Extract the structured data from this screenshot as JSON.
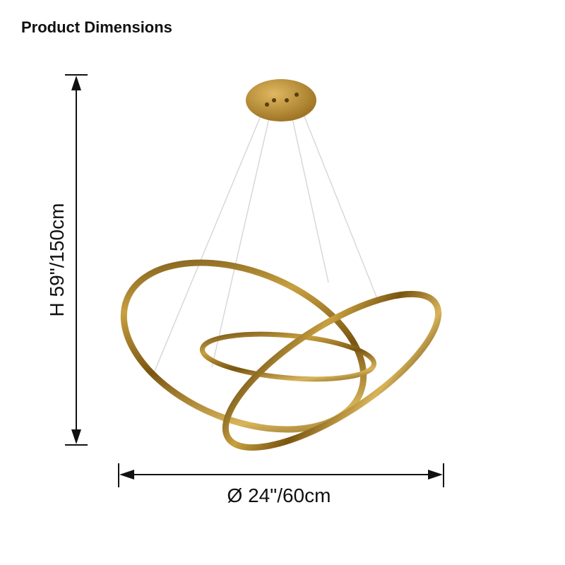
{
  "header": {
    "title": "Product Dimensions"
  },
  "dimensions": {
    "height": "H 59\"/150cm",
    "diameter": "Ø 24\"/60cm"
  }
}
